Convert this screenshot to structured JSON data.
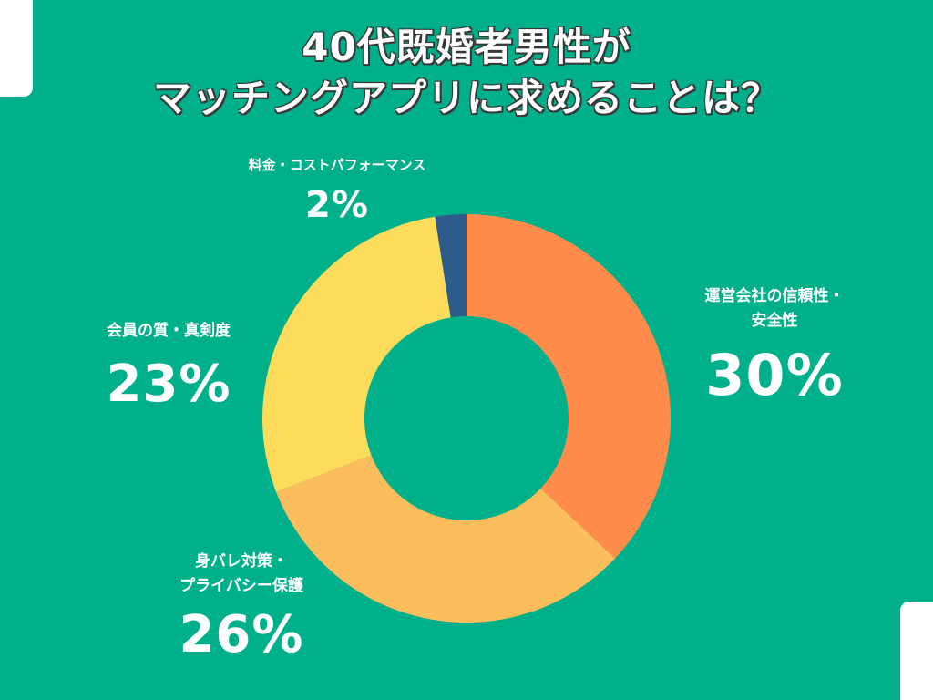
{
  "title": {
    "line1": "40代既婚者男性が",
    "line2": "マッチングアプリに求めることは？"
  },
  "chart_data": {
    "type": "pie",
    "donut": true,
    "title": "40代既婚者男性がマッチングアプリに求めることは？",
    "slices": [
      {
        "label": "運営会社の信頼性・安全性",
        "value": 30,
        "display": "30%",
        "color": "#ff8c4a"
      },
      {
        "label": "身バレ対策・プライバシー保護",
        "value": 26,
        "display": "26%",
        "color": "#fcbd5c"
      },
      {
        "label": "会員の質・真剣度",
        "value": 23,
        "display": "23%",
        "color": "#fddc5c"
      },
      {
        "label": "料金・コストパフォーマンス",
        "value": 2,
        "display": "2%",
        "color": "#2e5c8a"
      }
    ],
    "legend": "none"
  },
  "labels": {
    "safety": {
      "line1": "運営会社の信頼性・",
      "line2": "安全性",
      "pct": "30%"
    },
    "privacy": {
      "line1": "身バレ対策・",
      "line2": "プライバシー保護",
      "pct": "26%"
    },
    "quality": {
      "line1": "会員の質・真剣度",
      "pct": "23%"
    },
    "cost": {
      "line1": "料金・コストパフォーマンス",
      "pct": "2%"
    }
  }
}
